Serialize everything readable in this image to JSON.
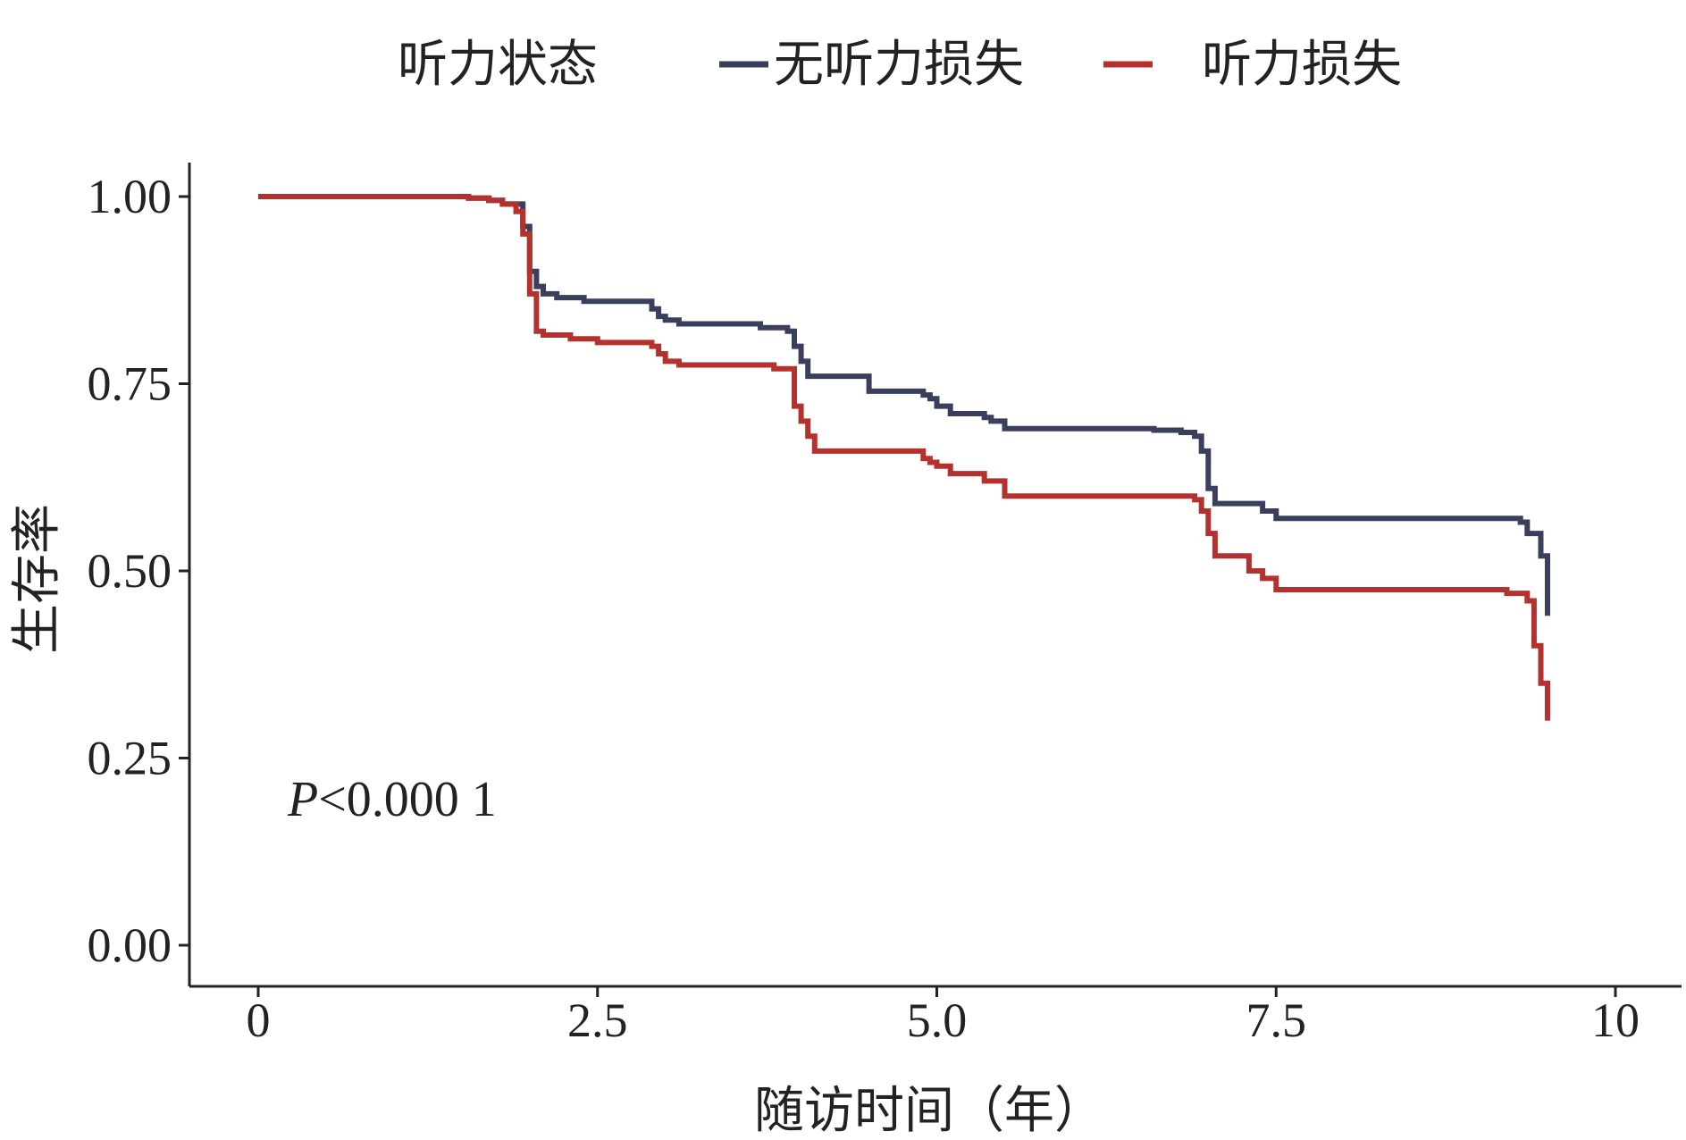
{
  "chart_data": {
    "type": "line",
    "subtype": "kaplan-meier step survival curve",
    "title": "",
    "xlabel": "随访时间（年）",
    "ylabel": "生存率",
    "xlim": [
      0,
      10
    ],
    "ylim": [
      0,
      1
    ],
    "x_ticks": [
      0,
      2.5,
      5.0,
      7.5,
      10
    ],
    "x_tick_labels": [
      "0",
      "2.5",
      "5.0",
      "7.5",
      "10"
    ],
    "y_ticks": [
      0,
      0.25,
      0.5,
      0.75,
      1.0
    ],
    "y_tick_labels": [
      "0.00",
      "0.25",
      "0.50",
      "0.75",
      "1.00"
    ],
    "grid": false,
    "legend": {
      "title": "听力状态",
      "position": "top"
    },
    "annotation": {
      "p_letter": "P",
      "p_rest": "<0.000 1"
    },
    "series": [
      {
        "name": "无听力损失",
        "color": "#3a3f5e",
        "x": [
          0,
          1.4,
          1.55,
          1.7,
          1.8,
          1.95,
          2.0,
          2.05,
          2.1,
          2.2,
          2.4,
          2.9,
          2.95,
          3.0,
          3.1,
          3.6,
          3.7,
          3.9,
          3.95,
          4.0,
          4.05,
          4.5,
          4.9,
          4.95,
          5.0,
          5.1,
          5.35,
          5.4,
          5.5,
          6.5,
          6.6,
          6.8,
          6.9,
          6.95,
          7.0,
          7.05,
          7.3,
          7.4,
          7.5,
          8.5,
          9.0,
          9.3,
          9.35,
          9.45,
          9.5
        ],
        "y": [
          1.0,
          1.0,
          0.998,
          0.995,
          0.99,
          0.96,
          0.9,
          0.88,
          0.87,
          0.865,
          0.86,
          0.85,
          0.84,
          0.835,
          0.83,
          0.83,
          0.825,
          0.82,
          0.8,
          0.78,
          0.76,
          0.74,
          0.735,
          0.73,
          0.72,
          0.71,
          0.705,
          0.7,
          0.69,
          0.69,
          0.688,
          0.685,
          0.68,
          0.66,
          0.61,
          0.59,
          0.59,
          0.58,
          0.57,
          0.57,
          0.57,
          0.565,
          0.55,
          0.52,
          0.44
        ]
      },
      {
        "name": "听力损失",
        "color": "#b3322e",
        "x": [
          0,
          1.4,
          1.55,
          1.7,
          1.8,
          1.9,
          1.95,
          2.0,
          2.05,
          2.1,
          2.3,
          2.5,
          2.9,
          2.95,
          3.0,
          3.1,
          3.5,
          3.8,
          3.95,
          4.0,
          4.05,
          4.1,
          4.9,
          4.95,
          5.0,
          5.1,
          5.35,
          5.5,
          6.5,
          6.8,
          6.9,
          6.95,
          7.0,
          7.05,
          7.3,
          7.4,
          7.5,
          8.5,
          9.0,
          9.2,
          9.35,
          9.4,
          9.45,
          9.5
        ],
        "y": [
          1.0,
          1.0,
          0.998,
          0.995,
          0.99,
          0.98,
          0.95,
          0.87,
          0.82,
          0.815,
          0.81,
          0.805,
          0.8,
          0.79,
          0.78,
          0.775,
          0.775,
          0.77,
          0.72,
          0.7,
          0.68,
          0.66,
          0.65,
          0.645,
          0.64,
          0.63,
          0.62,
          0.6,
          0.6,
          0.6,
          0.595,
          0.58,
          0.55,
          0.52,
          0.5,
          0.49,
          0.475,
          0.475,
          0.475,
          0.47,
          0.46,
          0.4,
          0.35,
          0.3
        ]
      }
    ]
  }
}
